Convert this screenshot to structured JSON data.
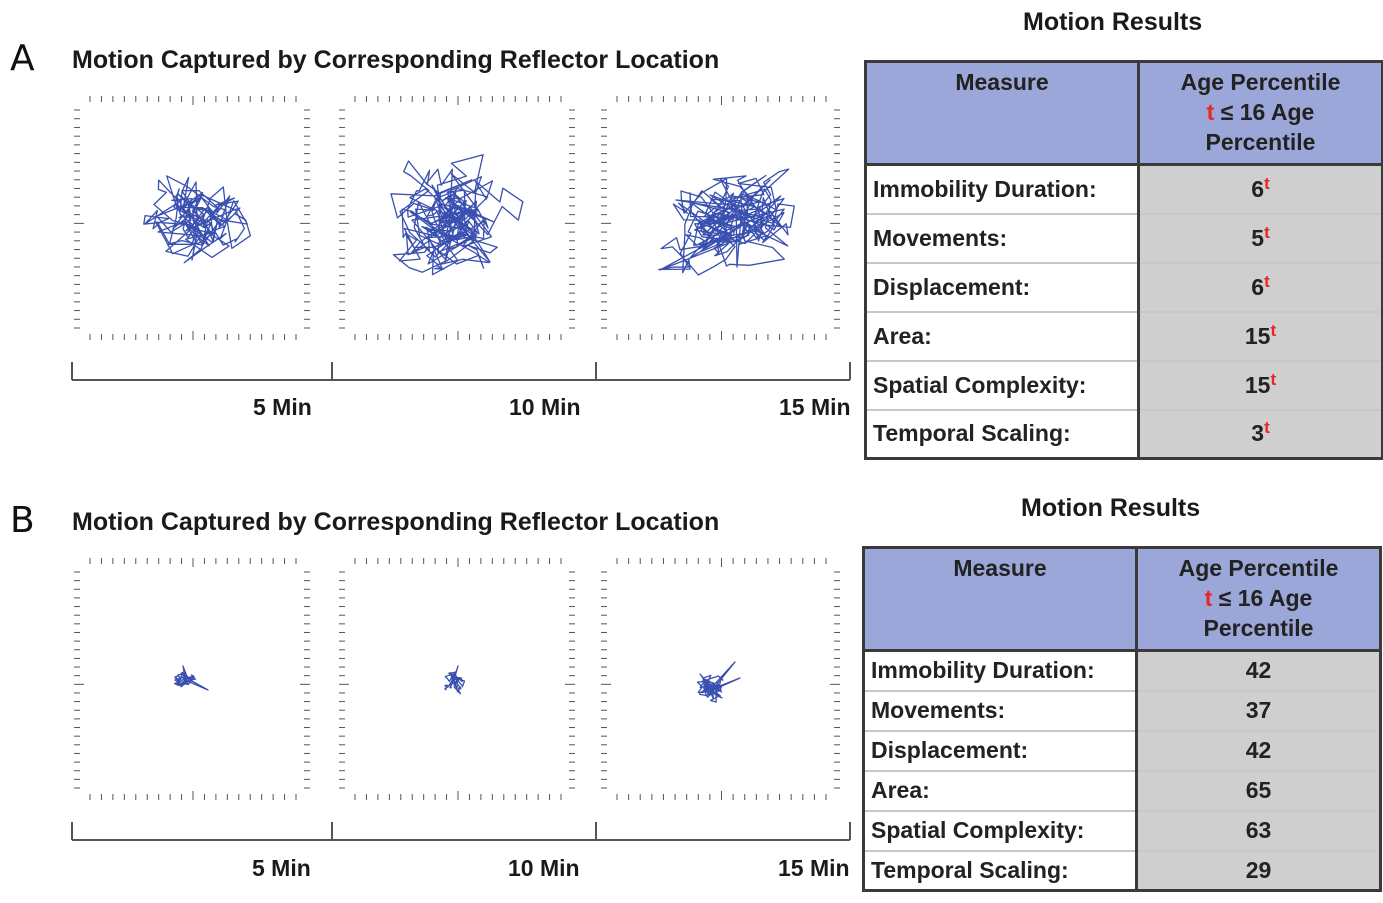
{
  "panels": [
    {
      "letter": "A",
      "title": "Motion Captured by Corresponding Reflector Location",
      "results_title": "Motion Results",
      "time_labels": [
        "5 Min",
        "10 Min",
        "15 Min"
      ],
      "table": {
        "header_measure": "Measure",
        "header_age_line1": "Age Percentile",
        "header_flag": "t",
        "header_age_line2": "≤ 16 Age",
        "header_age_line3": "Percentile",
        "rows": [
          {
            "measure": "Immobility Duration:",
            "value": "6",
            "flag": "t"
          },
          {
            "measure": "Movements:",
            "value": "5",
            "flag": "t"
          },
          {
            "measure": "Displacement:",
            "value": "6",
            "flag": "t"
          },
          {
            "measure": "Area:",
            "value": "15",
            "flag": "t"
          },
          {
            "measure": "Spatial Complexity:",
            "value": "15",
            "flag": "t"
          },
          {
            "measure": "Temporal Scaling:",
            "value": "3",
            "flag": "t"
          }
        ]
      }
    },
    {
      "letter": "B",
      "title": "Motion Captured by Corresponding Reflector Location",
      "results_title": "Motion Results",
      "time_labels": [
        "5 Min",
        "10 Min",
        "15 Min"
      ],
      "table": {
        "header_measure": "Measure",
        "header_age_line1": "Age Percentile",
        "header_flag": "t",
        "header_age_line2": "≤ 16 Age",
        "header_age_line3": "Percentile",
        "rows": [
          {
            "measure": "Immobility Duration:",
            "value": "42",
            "flag": ""
          },
          {
            "measure": "Movements:",
            "value": "37",
            "flag": ""
          },
          {
            "measure": "Displacement:",
            "value": "42",
            "flag": ""
          },
          {
            "measure": "Area:",
            "value": "65",
            "flag": ""
          },
          {
            "measure": "Spatial Complexity:",
            "value": "63",
            "flag": ""
          },
          {
            "measure": "Temporal Scaling:",
            "value": "29",
            "flag": ""
          }
        ]
      }
    }
  ],
  "colors": {
    "trajectory": "#3a50b0",
    "header_bg": "#9ba7d8",
    "value_bg": "#cfcfcf",
    "flag": "#e8262a",
    "axis": "#555555"
  }
}
